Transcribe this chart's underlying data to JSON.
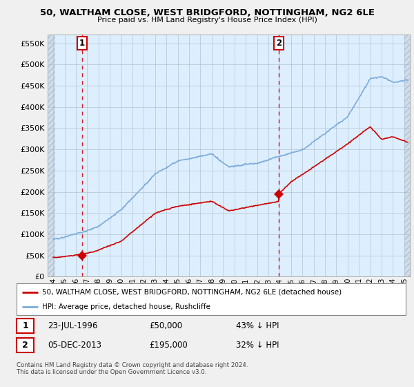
{
  "title": "50, WALTHAM CLOSE, WEST BRIDGFORD, NOTTINGHAM, NG2 6LE",
  "subtitle": "Price paid vs. HM Land Registry's House Price Index (HPI)",
  "xlim_start": 1993.5,
  "xlim_end": 2025.5,
  "ylim_bottom": 0,
  "ylim_top": 570000,
  "yticks": [
    0,
    50000,
    100000,
    150000,
    200000,
    250000,
    300000,
    350000,
    400000,
    450000,
    500000,
    550000
  ],
  "ytick_labels": [
    "£0",
    "£50K",
    "£100K",
    "£150K",
    "£200K",
    "£250K",
    "£300K",
    "£350K",
    "£400K",
    "£450K",
    "£500K",
    "£550K"
  ],
  "sale1_x": 1996.55,
  "sale1_y": 50000,
  "sale1_label": "1",
  "sale2_x": 2013.92,
  "sale2_y": 195000,
  "sale2_label": "2",
  "property_color": "#cc0000",
  "hpi_color": "#7aabdb",
  "legend_property": "50, WALTHAM CLOSE, WEST BRIDGFORD, NOTTINGHAM, NG2 6LE (detached house)",
  "legend_hpi": "HPI: Average price, detached house, Rushcliffe",
  "annotation1_date": "23-JUL-1996",
  "annotation1_price": "£50,000",
  "annotation1_hpi": "43% ↓ HPI",
  "annotation2_date": "05-DEC-2013",
  "annotation2_price": "£195,000",
  "annotation2_hpi": "32% ↓ HPI",
  "footer": "Contains HM Land Registry data © Crown copyright and database right 2024.\nThis data is licensed under the Open Government Licence v3.0.",
  "background_color": "#f0f0f0",
  "plot_bg_color": "#ddeeff",
  "grid_color": "#aabbcc",
  "hatch_bg_color": "#e0e8f0"
}
